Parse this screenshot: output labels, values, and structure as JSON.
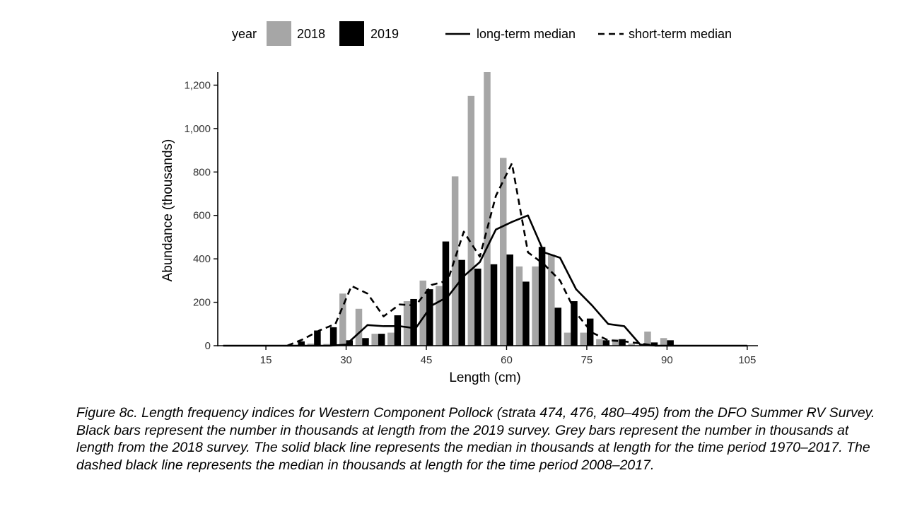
{
  "figure": {
    "caption": "Figure 8c. Length frequency indices for Western Component Pollock (strata 474, 476, 480–495) from the DFO Summer RV Survey. Black bars represent the number in thousands at length from the 2019 survey. Grey bars represent the number in thousands at length from the 2018 survey. The solid black line represents the median in thousands at length for the time period 1970–2017. The dashed black line represents the median in thousands at length for the time period 2008–2017."
  },
  "colors": {
    "bar_2018": "#a6a6a6",
    "bar_2019": "#000000",
    "line": "#000000"
  },
  "chart_data": {
    "type": "bar",
    "xlabel": "Length (cm)",
    "ylabel": "Abundance (thousands)",
    "xlim": [
      6,
      107
    ],
    "ylim": [
      0,
      1260
    ],
    "x_ticks": [
      15,
      30,
      45,
      60,
      75,
      90,
      105
    ],
    "x_tick_labels": [
      "15",
      "30",
      "45",
      "60",
      "75",
      "90",
      "105"
    ],
    "y_ticks": [
      0,
      200,
      400,
      600,
      800,
      1000,
      1200
    ],
    "y_tick_labels": [
      "0",
      "200",
      "400",
      "600",
      "800",
      "1,000",
      "1,200"
    ],
    "grid": false,
    "legend": {
      "position": "top",
      "title": "year",
      "bar_entries": [
        "2018",
        "2019"
      ],
      "line_entries": [
        "long-term median",
        "short-term median"
      ]
    },
    "bar_series": [
      {
        "name": "2018",
        "x": [
          21,
          24,
          27,
          30,
          33,
          36,
          39,
          42,
          45,
          48,
          51,
          54,
          57,
          60,
          63,
          66,
          69,
          72,
          75,
          78,
          81,
          84,
          87,
          90
        ],
        "values": [
          0,
          10,
          8,
          240,
          170,
          55,
          60,
          205,
          300,
          275,
          780,
          1150,
          1260,
          865,
          365,
          365,
          420,
          60,
          60,
          30,
          30,
          10,
          65,
          35
        ]
      },
      {
        "name": "2019",
        "x": [
          21,
          24,
          27,
          30,
          33,
          36,
          39,
          42,
          45,
          48,
          51,
          54,
          57,
          60,
          63,
          66,
          69,
          72,
          75,
          78,
          81,
          84,
          87,
          90
        ],
        "values": [
          20,
          70,
          85,
          25,
          35,
          55,
          140,
          215,
          260,
          480,
          395,
          355,
          375,
          420,
          295,
          455,
          175,
          205,
          125,
          25,
          30,
          0,
          15,
          25
        ]
      }
    ],
    "line_series": [
      {
        "name": "long-term median",
        "style": "solid",
        "x": [
          7,
          10,
          15,
          19,
          21,
          24,
          27,
          30,
          34,
          37,
          40,
          43,
          46,
          49,
          52,
          55,
          58,
          61,
          64,
          67,
          70,
          73,
          76,
          79,
          82,
          85,
          88,
          91,
          95,
          100,
          105
        ],
        "y": [
          0,
          0,
          0,
          0,
          0,
          0,
          0,
          5,
          95,
          90,
          90,
          80,
          185,
          225,
          320,
          385,
          535,
          570,
          600,
          430,
          405,
          260,
          185,
          100,
          90,
          5,
          0,
          0,
          0,
          0,
          0
        ]
      },
      {
        "name": "short-term median",
        "style": "dashed",
        "x": [
          19,
          22,
          25,
          28,
          31,
          34,
          37,
          40,
          43,
          46,
          49,
          52,
          55,
          58,
          61,
          64,
          67,
          70,
          73,
          76,
          79,
          82,
          85,
          88
        ],
        "y": [
          0,
          30,
          70,
          100,
          275,
          240,
          135,
          190,
          185,
          280,
          300,
          525,
          410,
          690,
          840,
          430,
          375,
          300,
          150,
          60,
          25,
          20,
          10,
          0
        ]
      }
    ]
  }
}
